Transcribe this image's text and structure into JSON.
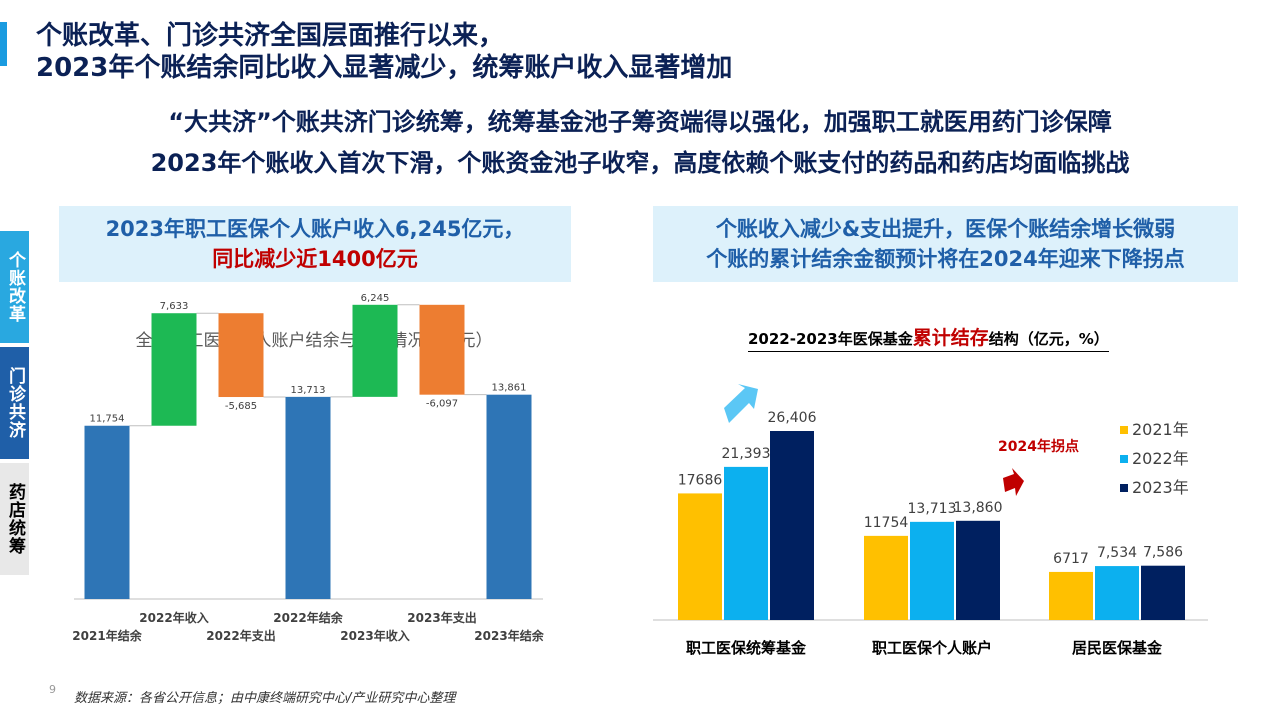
{
  "header": {
    "title_line1": "个账改革、门诊共济全国层面推行以来，",
    "title_line2": "2023年个账结余同比收入显著减少，统筹账户收入显著增加",
    "subtitle_line1": "“大共济”个账共济门诊统筹，统筹基金池子筹资端得以强化，加强职工就医用药门诊保障",
    "subtitle_line2": "2023年个账收入首次下滑，个账资金池子收窄，高度依赖个账支付的药品和药店均面临挑战"
  },
  "side_tabs": [
    {
      "label": "个账改革",
      "color": "#29a8e0"
    },
    {
      "label": "门诊共济",
      "color": "#1f5fa8"
    },
    {
      "label": "药店统筹",
      "color": "#e8e8e8"
    }
  ],
  "left_box": {
    "line1": "2023年职工医保个人账户收入6,245亿元，",
    "line2": "同比减少近1400亿元"
  },
  "right_box": {
    "line1": "个账收入减少&支出提升，医保个账结余增长微弱",
    "line2": "个账的累计结余金额预计将在2024年迎来下降拐点"
  },
  "left_chart_title": "全国职工医保个人账户结余与收支情况（亿元）",
  "right_chart_title": {
    "prefix": "2022-2023年医保基金",
    "highlight": "累计结存",
    "suffix": "结构（亿元，%）"
  },
  "annotation_turning_point": "2024年拐点",
  "source": "数据来源：各省公开信息；由中康终端研究中心/产业研究中心整理",
  "page_number": "9",
  "colors": {
    "blue_bar": "#2e75b6",
    "green": "#1db954",
    "orange": "#ed7d31",
    "y2021": "#ffc000",
    "y2022": "#0cb0ef",
    "y2023": "#002060",
    "accent": "#1a9be0",
    "red": "#c00000"
  },
  "chart_data": [
    {
      "type": "bar",
      "subtype": "waterfall",
      "title": "全国职工医保个人账户结余与收支情况（亿元）",
      "categories": [
        "2021年结余",
        "2022年收入",
        "2022年支出",
        "2022年结余",
        "2023年收入",
        "2023年支出",
        "2023年结余"
      ],
      "values": [
        11754,
        7633,
        -5685,
        13713,
        6245,
        -6097,
        13861
      ],
      "value_labels": [
        "11,754",
        "7,633",
        "-5,685",
        "13,713",
        "6,245",
        "-6,097",
        "13,861"
      ],
      "kinds": [
        "total",
        "increase",
        "decrease",
        "total",
        "increase",
        "decrease",
        "total"
      ],
      "ylim": [
        0,
        21000
      ],
      "grid": false,
      "legend": "none"
    },
    {
      "type": "bar",
      "title": "2022-2023年医保基金累计结存结构（亿元，%）",
      "categories": [
        "职工医保统筹基金",
        "职工医保个人账户",
        "居民医保基金"
      ],
      "series": [
        {
          "name": "2021年",
          "values": [
            17686,
            11754,
            6717
          ],
          "labels": [
            "17686",
            "11754",
            "6717"
          ]
        },
        {
          "name": "2022年",
          "values": [
            21393,
            13713,
            7534
          ],
          "labels": [
            "21,393",
            "13,713",
            "7,534"
          ]
        },
        {
          "name": "2023年",
          "values": [
            26406,
            13860,
            7586
          ],
          "labels": [
            "26,406",
            "13,860",
            "7,586"
          ]
        }
      ],
      "ylim": [
        0,
        33000
      ],
      "grid": false,
      "legend": "right"
    }
  ]
}
